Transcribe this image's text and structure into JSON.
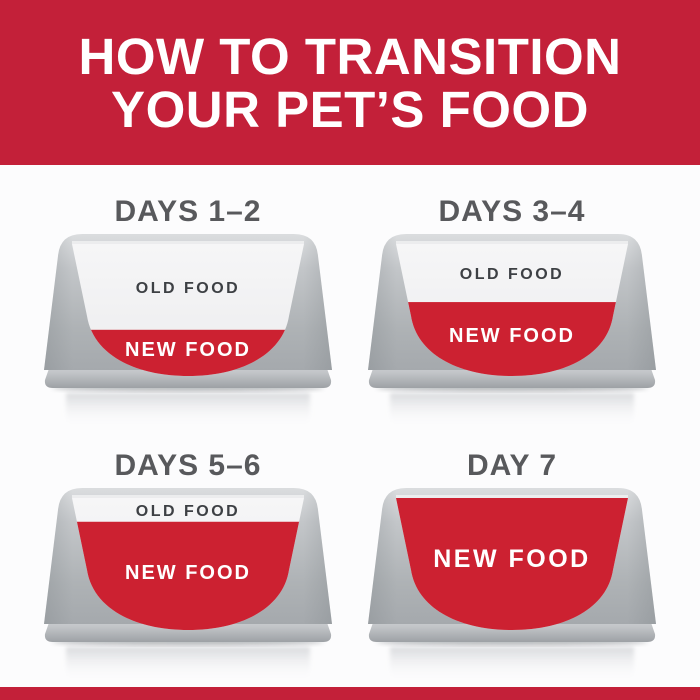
{
  "header": {
    "line1": "HOW TO TRANSITION",
    "line2": "YOUR PET’S FOOD"
  },
  "colors": {
    "brand_red": "#C32039",
    "food_red": "#CC2131",
    "bowl_gray": "#B0B4B7",
    "background": "#FCFCFD",
    "title_gray": "#58595C",
    "old_food_text": "#3D4044",
    "new_food_text": "#FFFFFF"
  },
  "bowls": [
    {
      "title": "DAYS 1–2",
      "old_food_label": "OLD FOOD",
      "new_food_label": "NEW FOOD",
      "new_food_level": 0.35
    },
    {
      "title": "DAYS 3–4",
      "old_food_label": "OLD FOOD",
      "new_food_label": "NEW FOOD",
      "new_food_level": 0.56
    },
    {
      "title": "DAYS 5–6",
      "old_food_label": "OLD FOOD",
      "new_food_label": "NEW FOOD",
      "new_food_level": 0.82
    },
    {
      "title": "DAY 7",
      "old_food_label": "",
      "new_food_label": "NEW FOOD",
      "new_food_level": 1.0
    }
  ]
}
